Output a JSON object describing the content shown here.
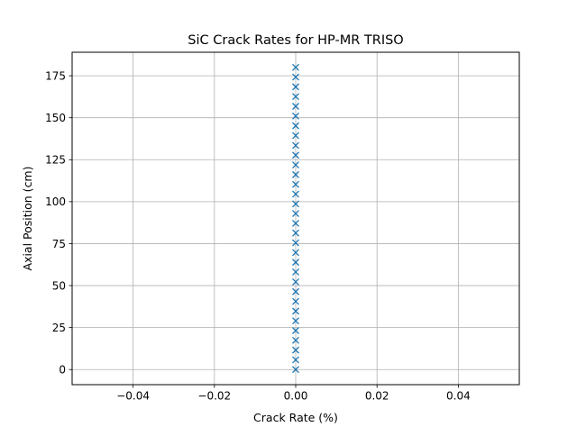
{
  "chart_data": {
    "type": "scatter",
    "title": "SiC Crack Rates for HP-MR TRISO",
    "xlabel": "Crack Rate (%)",
    "ylabel": "Axial Position (cm)",
    "xlim": [
      -0.055,
      0.055
    ],
    "ylim": [
      -9.0,
      189.0
    ],
    "xticks": [
      -0.04,
      -0.02,
      0.0,
      0.02,
      0.04
    ],
    "xtick_labels": [
      "−0.04",
      "−0.02",
      "0.00",
      "0.02",
      "0.04"
    ],
    "yticks": [
      0,
      25,
      50,
      75,
      100,
      125,
      150,
      175
    ],
    "ytick_labels": [
      "0",
      "25",
      "50",
      "75",
      "100",
      "125",
      "150",
      "175"
    ],
    "grid": true,
    "marker": "x",
    "marker_color": "#1f77b4",
    "series": [
      {
        "x": [
          0,
          0,
          0,
          0,
          0,
          0,
          0,
          0,
          0,
          0,
          0,
          0,
          0,
          0,
          0,
          0,
          0,
          0,
          0,
          0,
          0,
          0,
          0,
          0,
          0,
          0,
          0,
          0,
          0,
          0,
          0,
          0
        ],
        "y": [
          0.0,
          5.8,
          11.6,
          17.4,
          23.2,
          29.0,
          34.8,
          40.6,
          46.4,
          52.2,
          58.1,
          63.9,
          69.7,
          75.5,
          81.3,
          87.1,
          92.9,
          98.7,
          104.5,
          110.3,
          116.1,
          121.9,
          127.7,
          133.5,
          139.4,
          145.2,
          151.0,
          156.8,
          162.6,
          168.4,
          174.2,
          180.0
        ]
      }
    ]
  }
}
